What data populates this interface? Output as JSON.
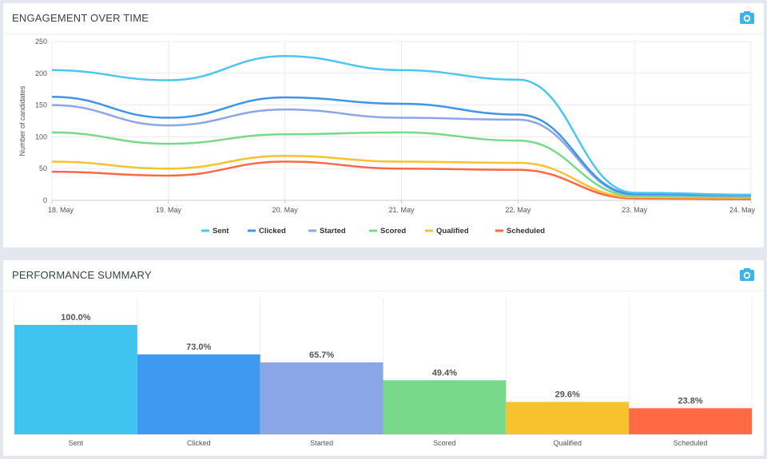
{
  "panels": {
    "engagement": {
      "title": "ENGAGEMENT OVER TIME",
      "export_icon": "camera-icon"
    },
    "performance": {
      "title": "PERFORMANCE SUMMARY",
      "export_icon": "camera-icon"
    }
  },
  "chart_data": [
    {
      "type": "line",
      "smooth": true,
      "title": "ENGAGEMENT OVER TIME",
      "xlabel": "",
      "ylabel": "Number of candidates",
      "categories": [
        "18. May",
        "19. May",
        "20. May",
        "21. May",
        "22. May",
        "23. May",
        "24. May"
      ],
      "ylim": [
        0,
        250
      ],
      "yticks": [
        0,
        50,
        100,
        150,
        200,
        250
      ],
      "grid": true,
      "legend_position": "bottom-center",
      "series": [
        {
          "name": "Sent",
          "color": "#4bc6ee",
          "values": [
            205,
            189,
            227,
            205,
            190,
            12,
            9
          ]
        },
        {
          "name": "Clicked",
          "color": "#3f95e8",
          "values": [
            163,
            130,
            162,
            152,
            135,
            10,
            8
          ]
        },
        {
          "name": "Started",
          "color": "#8ea6e6",
          "values": [
            150,
            118,
            143,
            130,
            127,
            9,
            7
          ]
        },
        {
          "name": "Scored",
          "color": "#78d98a",
          "values": [
            107,
            89,
            104,
            107,
            94,
            7,
            5
          ]
        },
        {
          "name": "Qualified",
          "color": "#f8c22e",
          "values": [
            61,
            50,
            70,
            61,
            59,
            5,
            4
          ]
        },
        {
          "name": "Scheduled",
          "color": "#ff6846",
          "values": [
            45,
            39,
            61,
            50,
            48,
            3,
            2
          ]
        }
      ]
    },
    {
      "type": "bar",
      "title": "PERFORMANCE SUMMARY",
      "xlabel": "",
      "ylabel": "",
      "categories": [
        "Sent",
        "Clicked",
        "Started",
        "Scored",
        "Qualified",
        "Scheduled"
      ],
      "values": [
        100.0,
        73.0,
        65.7,
        49.4,
        29.6,
        23.8
      ],
      "data_labels": [
        "100.0%",
        "73.0%",
        "65.7%",
        "49.4%",
        "29.6%",
        "23.8%"
      ],
      "colors": [
        "#3fc4ef",
        "#3f9aef",
        "#8aa6e6",
        "#78d98a",
        "#f8c22e",
        "#ff6a44"
      ],
      "ylim": [
        0,
        100
      ],
      "grid": true,
      "legend_position": "none"
    }
  ]
}
